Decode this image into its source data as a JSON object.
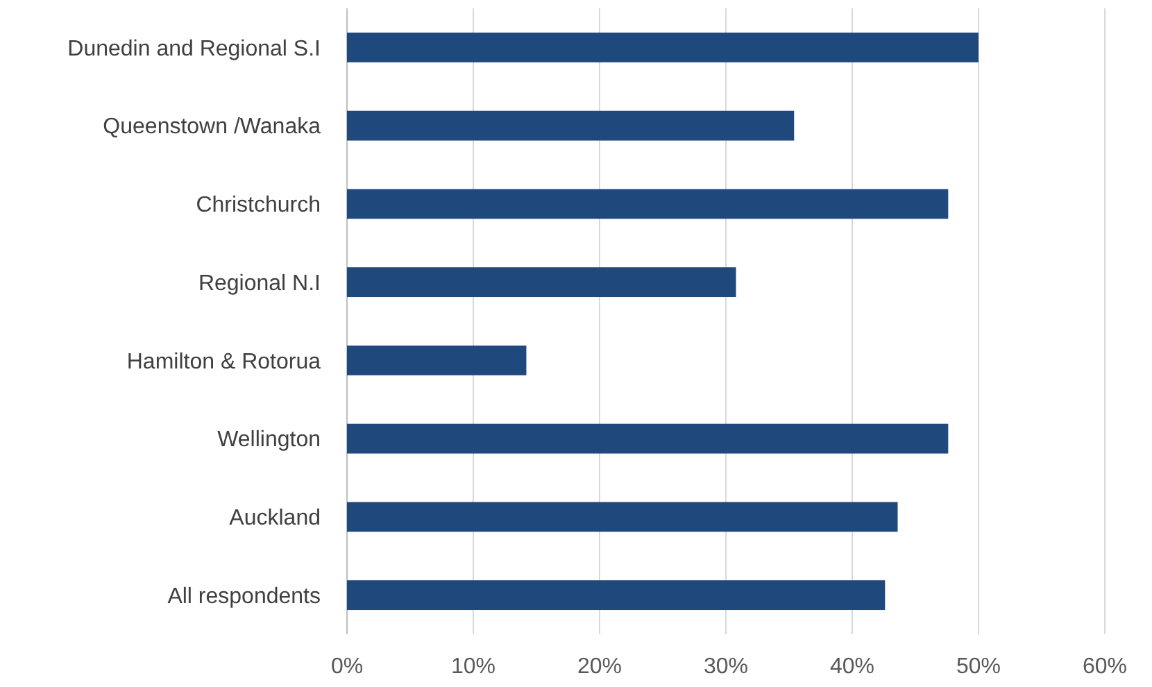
{
  "chart_data": {
    "type": "bar",
    "orientation": "horizontal",
    "categories": [
      "Dunedin and Regional S.I",
      "Queenstown /Wanaka",
      "Christchurch",
      "Regional N.I",
      "Hamilton & Rotorua",
      "Wellington",
      "Auckland",
      "All respondents"
    ],
    "values": [
      50,
      35.4,
      47.6,
      30.8,
      14.2,
      47.6,
      43.6,
      42.6
    ],
    "color": "#1f497d",
    "xlim": [
      0,
      60
    ],
    "xticks": [
      {
        "value": 0,
        "label": "0%"
      },
      {
        "value": 10,
        "label": "10%"
      },
      {
        "value": 20,
        "label": "20%"
      },
      {
        "value": 30,
        "label": "30%"
      },
      {
        "value": 40,
        "label": "40%"
      },
      {
        "value": 50,
        "label": "50%"
      },
      {
        "value": 60,
        "label": "60%"
      }
    ],
    "grid": "x"
  }
}
